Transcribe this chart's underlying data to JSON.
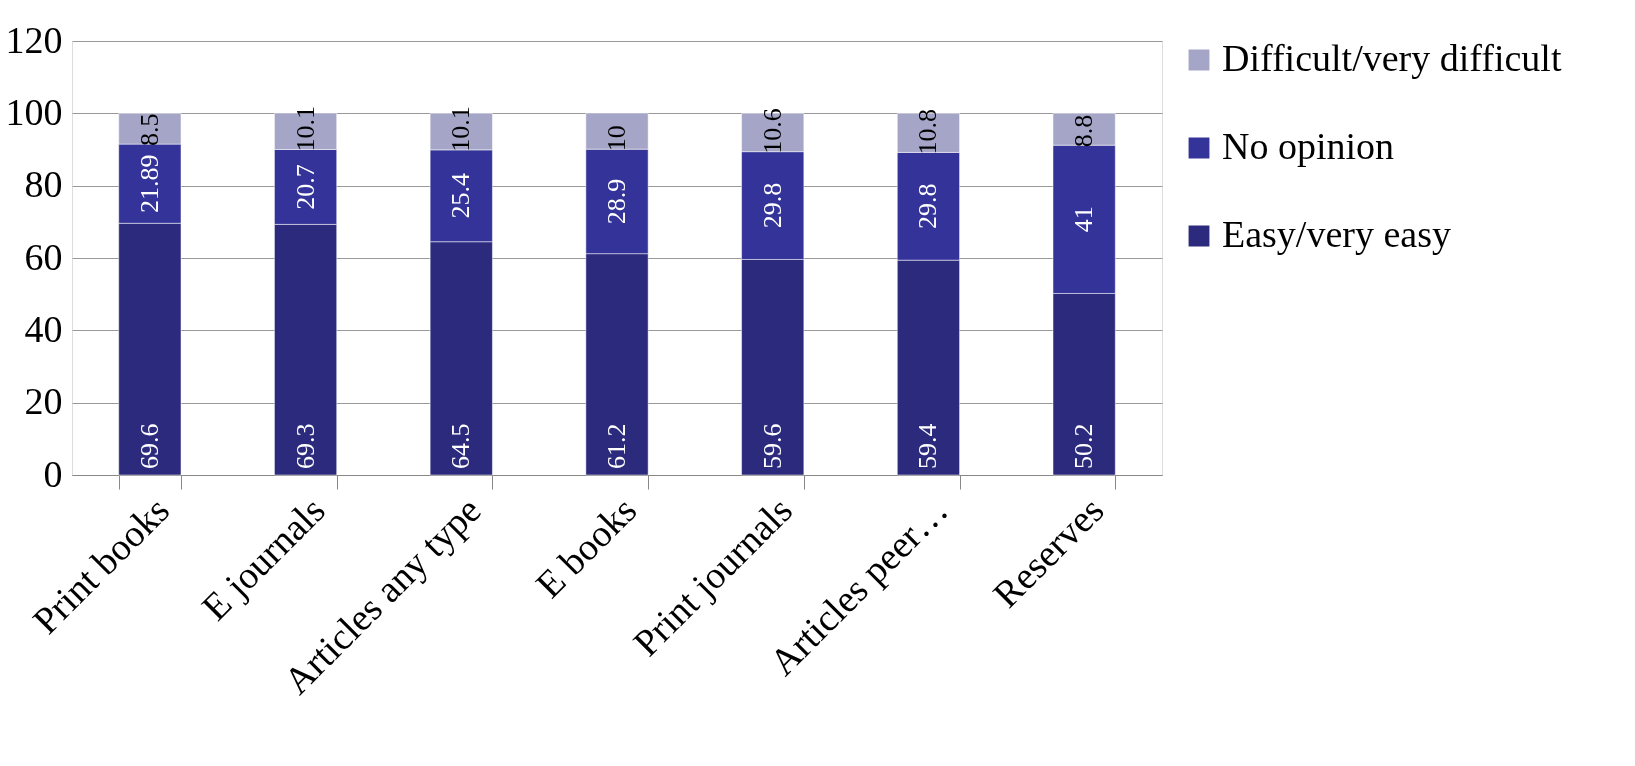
{
  "chart_data": {
    "type": "bar",
    "stacked": true,
    "categories": [
      "Print books",
      "E journals",
      "Articles any type",
      "E books",
      "Print journals",
      "Articles peer…",
      "Reserves"
    ],
    "series": [
      {
        "name": "Easy/very easy",
        "color": "#2b2a7d",
        "values": [
          69.6,
          69.3,
          64.5,
          61.2,
          59.6,
          59.4,
          50.2
        ]
      },
      {
        "name": "No opinion",
        "color": "#333399",
        "values": [
          21.89,
          20.7,
          25.4,
          28.9,
          29.8,
          29.8,
          41
        ]
      },
      {
        "name": "Difficult/very difficult",
        "color": "#a5a5c8",
        "values": [
          8.5,
          10.1,
          10.1,
          10,
          10.6,
          10.8,
          8.8
        ]
      }
    ],
    "ylim": [
      0,
      120
    ],
    "yticks": [
      0,
      20,
      40,
      60,
      80,
      100,
      120
    ],
    "grid": "y",
    "legend": "right",
    "data_labels": true
  }
}
